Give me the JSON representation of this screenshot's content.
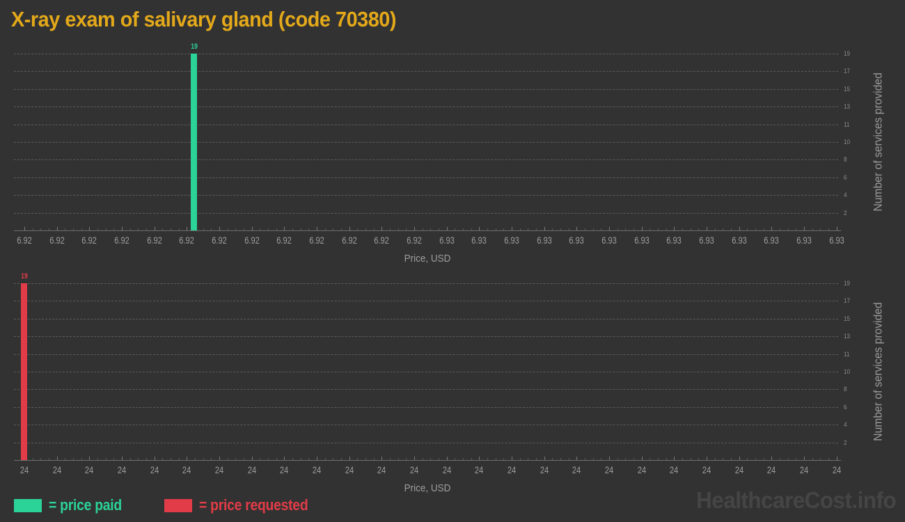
{
  "page": {
    "title": "X-ray exam of salivary gland (code 70380)",
    "watermark": "HealthcareCost.info"
  },
  "colors": {
    "background": "#323232",
    "title": "#e4a91a",
    "paid": "#2bd398",
    "requested": "#e23c48",
    "gridline": "#5c5c5c",
    "axis_line": "#6f6f6f",
    "x_tick_label": "#9e9e9e",
    "y_tick_label": "#8d8d8d",
    "axis_title": "#9e9e9e",
    "watermark": "#454545"
  },
  "legend": {
    "paid_label": "= price paid",
    "requested_label": "= price requested",
    "position": "bottom-left"
  },
  "chart_data": {
    "title": "X-ray exam of salivary gland (code 70380)",
    "charts": [
      {
        "type": "bar",
        "name": "price-paid-histogram",
        "series": "price paid",
        "color": "#2bd398",
        "xlabel": "Price, USD",
        "ylabel": "Number of services provided",
        "ylim": [
          0,
          19
        ],
        "y_ticks": [
          19,
          17,
          15,
          13,
          11,
          10,
          8,
          6,
          4,
          2
        ],
        "grid": "dashed-horizontal",
        "x_axis_range": [
          6.92,
          6.93
        ],
        "x_tick_labels": [
          "6.92",
          "6.92",
          "6.92",
          "6.92",
          "6.92",
          "6.92",
          "6.92",
          "6.92",
          "6.92",
          "6.92",
          "6.92",
          "6.92",
          "6.92",
          "6.93",
          "6.93",
          "6.93",
          "6.93",
          "6.93",
          "6.93",
          "6.93",
          "6.93",
          "6.93",
          "6.93",
          "6.93",
          "6.93",
          "6.93"
        ],
        "bars": [
          {
            "price_usd": 6.92,
            "count": 19,
            "label": "19",
            "x_frac": 0.218
          }
        ]
      },
      {
        "type": "bar",
        "name": "price-requested-histogram",
        "series": "price requested",
        "color": "#e23c48",
        "xlabel": "Price, USD",
        "ylabel": "Number of services provided",
        "ylim": [
          0,
          19
        ],
        "y_ticks": [
          19,
          17,
          15,
          13,
          11,
          10,
          8,
          6,
          4,
          2
        ],
        "grid": "dashed-horizontal",
        "x_axis_range": [
          24,
          24
        ],
        "x_tick_labels": [
          "24",
          "24",
          "24",
          "24",
          "24",
          "24",
          "24",
          "24",
          "24",
          "24",
          "24",
          "24",
          "24",
          "24",
          "24",
          "24",
          "24",
          "24",
          "24",
          "24",
          "24",
          "24",
          "24",
          "24",
          "24",
          "24"
        ],
        "bars": [
          {
            "price_usd": 24,
            "count": 19,
            "label": "19",
            "x_frac": 0.0126
          }
        ]
      }
    ]
  }
}
